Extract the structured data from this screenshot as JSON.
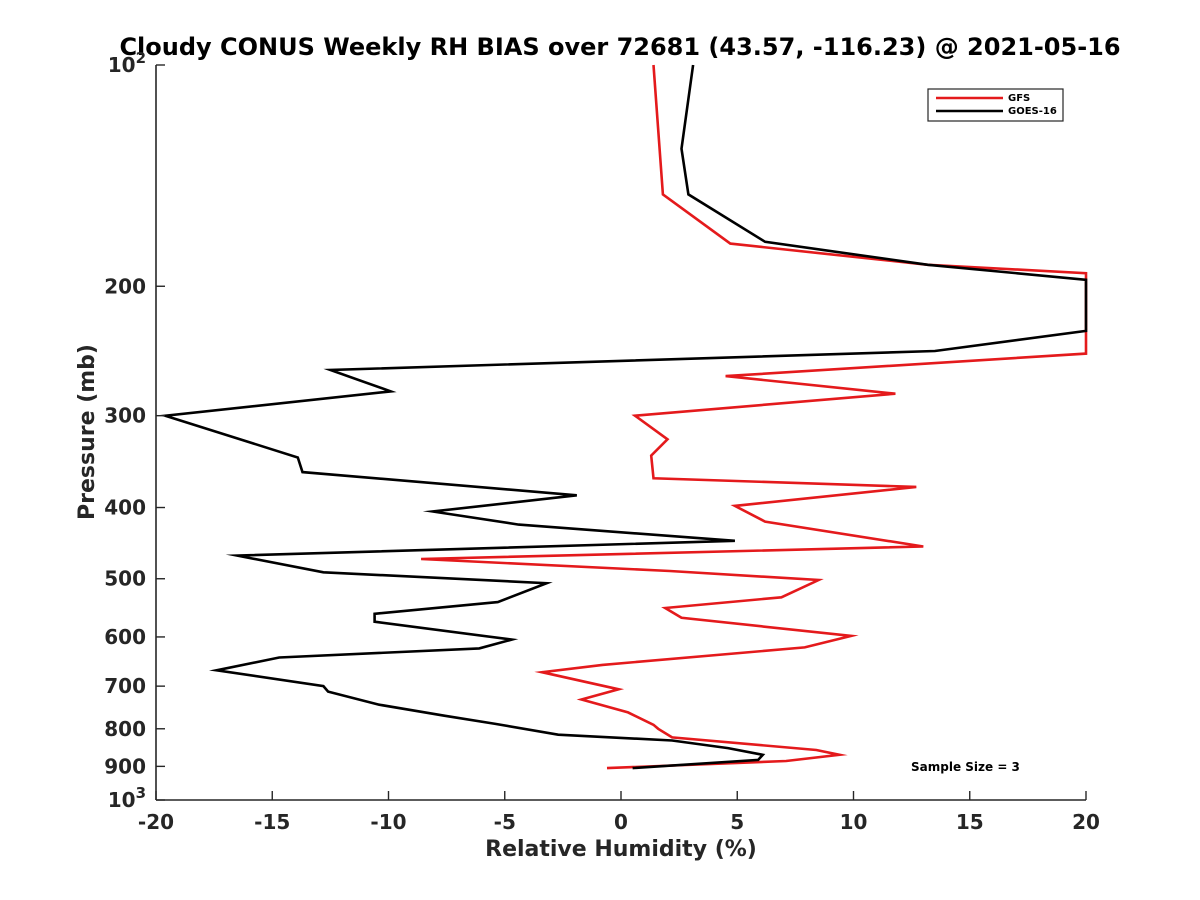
{
  "chart_data": {
    "type": "line",
    "title": "Cloudy CONUS Weekly RH BIAS over 72681 (43.57, -116.23) @ 2021-05-16",
    "xlabel": "Relative Humidity (%)",
    "ylabel": "Pressure (mb)",
    "xlim": [
      -20,
      20
    ],
    "ylim": [
      100,
      1000
    ],
    "y_scale": "log",
    "y_reversed": true,
    "grid": false,
    "legend_position": "top-right",
    "x_ticks": [
      "-20",
      "-15",
      "-10",
      "-5",
      "0",
      "5",
      "10",
      "15",
      "20"
    ],
    "y_ticks": [
      {
        "value": 100,
        "base": "10",
        "exp": "2"
      },
      {
        "value": 200,
        "label": "200"
      },
      {
        "value": 300,
        "label": "300"
      },
      {
        "value": 400,
        "label": "400"
      },
      {
        "value": 500,
        "label": "500"
      },
      {
        "value": 600,
        "label": "600"
      },
      {
        "value": 700,
        "label": "700"
      },
      {
        "value": 800,
        "label": "800"
      },
      {
        "value": 900,
        "label": "900"
      },
      {
        "value": 1000,
        "base": "10",
        "exp": "3"
      }
    ],
    "annotation": "Sample Size = 3",
    "series": [
      {
        "name": "GFS",
        "color": "#e41a1c",
        "points": [
          [
            1.4,
            100
          ],
          [
            1.8,
            150
          ],
          [
            4.7,
            175
          ],
          [
            13.2,
            187
          ],
          [
            20.0,
            192
          ],
          [
            20.0,
            247
          ],
          [
            4.5,
            265
          ],
          [
            11.8,
            280
          ],
          [
            0.6,
            300
          ],
          [
            2.0,
            323
          ],
          [
            1.3,
            340
          ],
          [
            1.4,
            365
          ],
          [
            12.7,
            375
          ],
          [
            4.9,
            398
          ],
          [
            6.2,
            418
          ],
          [
            13.0,
            452
          ],
          [
            -8.6,
            470
          ],
          [
            2.1,
            488
          ],
          [
            8.5,
            502
          ],
          [
            6.9,
            530
          ],
          [
            1.9,
            548
          ],
          [
            2.6,
            565
          ],
          [
            9.9,
            598
          ],
          [
            7.9,
            620
          ],
          [
            -0.8,
            655
          ],
          [
            -3.4,
            670
          ],
          [
            -0.1,
            707
          ],
          [
            -1.7,
            730
          ],
          [
            0.3,
            760
          ],
          [
            1.4,
            790
          ],
          [
            1.6,
            800
          ],
          [
            2.2,
            822
          ],
          [
            8.4,
            855
          ],
          [
            9.4,
            868
          ],
          [
            7.1,
            885
          ],
          [
            -0.6,
            905
          ]
        ]
      },
      {
        "name": "GOES-16",
        "color": "#000000",
        "points": [
          [
            3.1,
            100
          ],
          [
            2.6,
            130
          ],
          [
            2.9,
            150
          ],
          [
            6.2,
            174
          ],
          [
            13.2,
            187
          ],
          [
            20.0,
            196
          ],
          [
            20.0,
            230
          ],
          [
            13.5,
            245
          ],
          [
            -12.5,
            260
          ],
          [
            -9.9,
            278
          ],
          [
            -19.6,
            300
          ],
          [
            -13.9,
            342
          ],
          [
            -13.7,
            358
          ],
          [
            -1.9,
            385
          ],
          [
            -8.1,
            405
          ],
          [
            -4.4,
            422
          ],
          [
            4.9,
            444
          ],
          [
            -16.5,
            465
          ],
          [
            -12.8,
            490
          ],
          [
            -3.2,
            507
          ],
          [
            -5.3,
            538
          ],
          [
            -10.6,
            558
          ],
          [
            -10.6,
            572
          ],
          [
            -4.7,
            605
          ],
          [
            -6.1,
            622
          ],
          [
            -14.7,
            640
          ],
          [
            -17.4,
            666
          ],
          [
            -12.8,
            700
          ],
          [
            -12.6,
            712
          ],
          [
            -10.4,
            742
          ],
          [
            -7.6,
            768
          ],
          [
            -5.4,
            788
          ],
          [
            -2.7,
            815
          ],
          [
            2.2,
            830
          ],
          [
            4.6,
            850
          ],
          [
            6.1,
            868
          ],
          [
            5.9,
            882
          ],
          [
            0.5,
            905
          ]
        ]
      }
    ]
  }
}
